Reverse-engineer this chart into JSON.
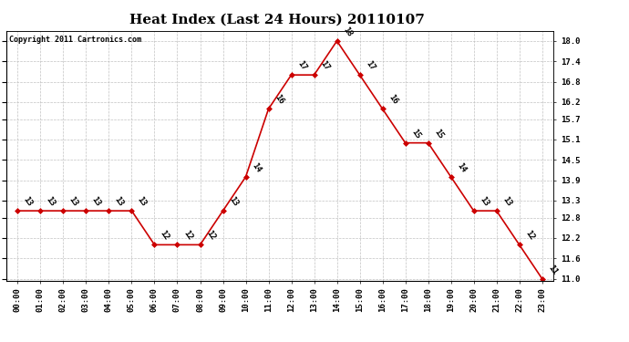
{
  "title": "Heat Index (Last 24 Hours) 20110107",
  "copyright": "Copyright 2011 Cartronics.com",
  "hours": [
    "00:00",
    "01:00",
    "02:00",
    "03:00",
    "04:00",
    "05:00",
    "06:00",
    "07:00",
    "08:00",
    "09:00",
    "10:00",
    "11:00",
    "12:00",
    "13:00",
    "14:00",
    "15:00",
    "16:00",
    "17:00",
    "18:00",
    "19:00",
    "20:00",
    "21:00",
    "22:00",
    "23:00"
  ],
  "values": [
    13,
    13,
    13,
    13,
    13,
    13,
    12,
    12,
    12,
    13,
    14,
    16,
    17,
    17,
    18,
    17,
    16,
    15,
    15,
    14,
    13,
    13,
    12,
    11
  ],
  "ylim_min": 11.0,
  "ylim_max": 18.0,
  "yticks": [
    11.0,
    11.6,
    12.2,
    12.8,
    13.3,
    13.9,
    14.5,
    15.1,
    15.7,
    16.2,
    16.8,
    17.4,
    18.0
  ],
  "line_color": "#cc0000",
  "marker_color": "#cc0000",
  "bg_color": "#ffffff",
  "grid_color": "#bbbbbb",
  "label_fontsize": 6.5,
  "title_fontsize": 11,
  "copyright_fontsize": 6,
  "tick_fontsize": 6.5
}
